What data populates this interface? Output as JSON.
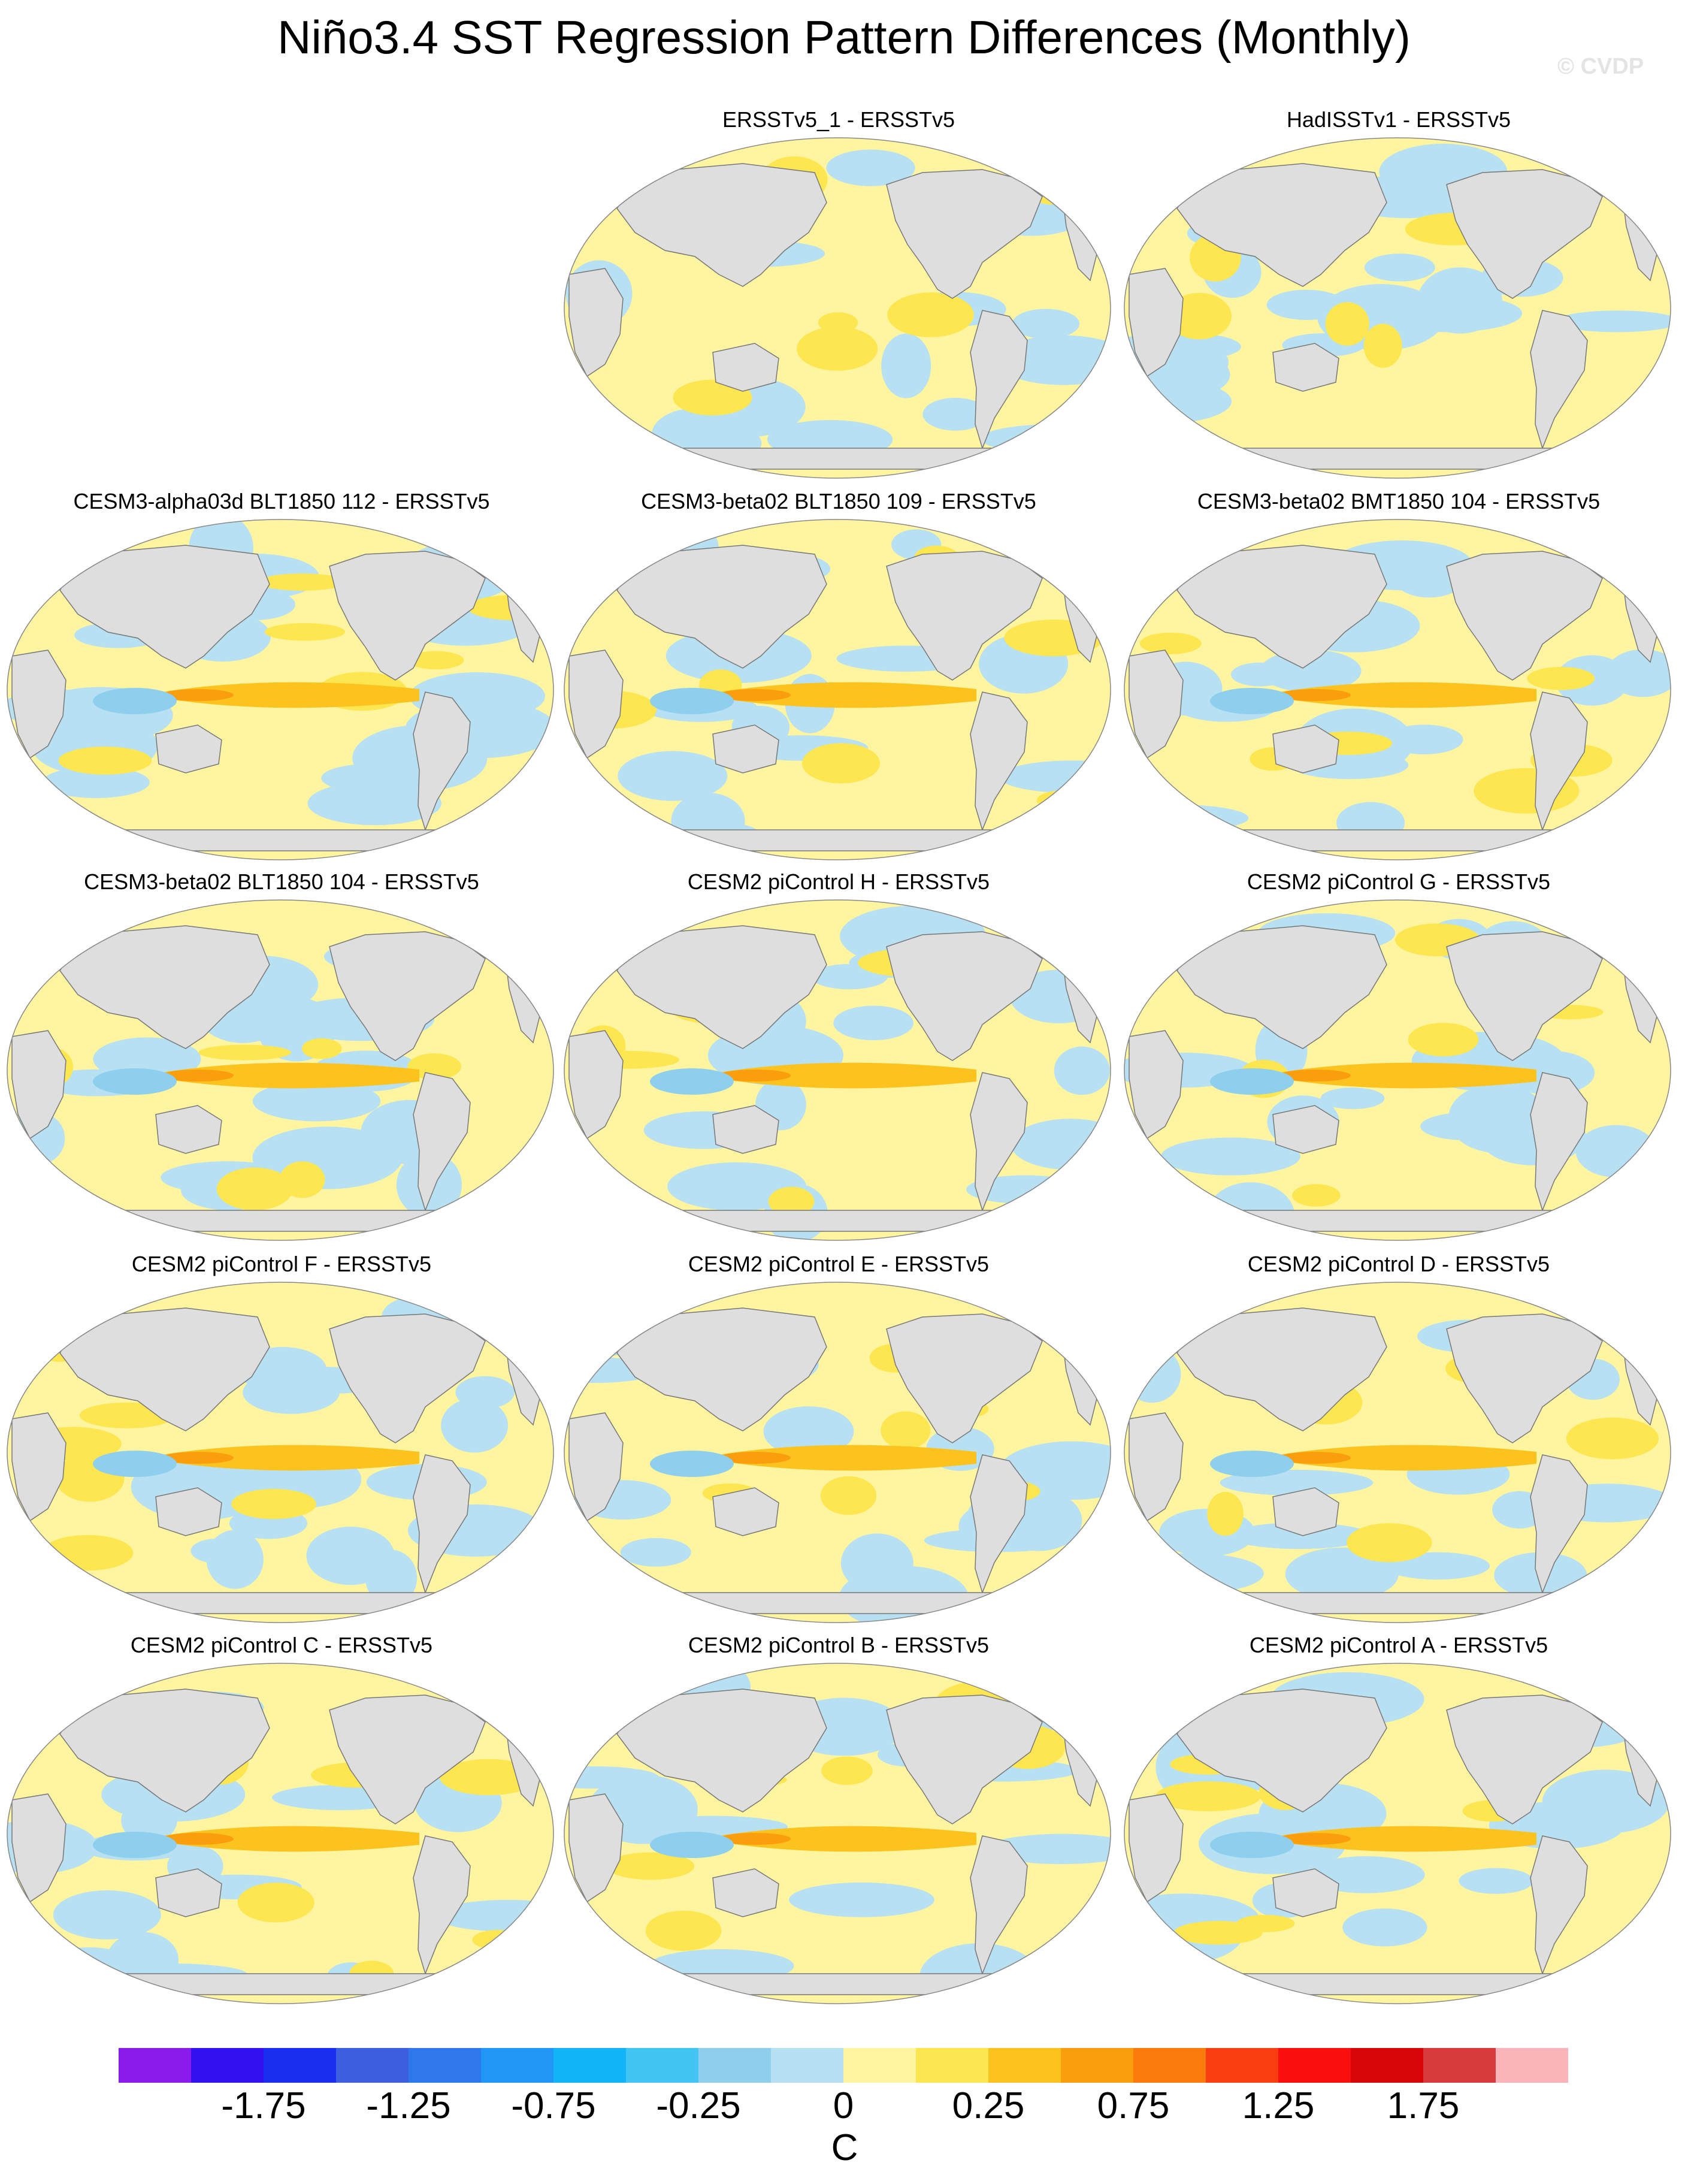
{
  "title": "Niño3.4 SST Regression Pattern Differences (Monthly)",
  "watermark": "© CVDP",
  "panels": [
    {
      "title": "ERSSTv5_1 - ERSSTv5"
    },
    {
      "title": "HadISSTv1 - ERSSTv5"
    },
    {
      "title": "CESM3-alpha03d BLT1850 112 - ERSSTv5"
    },
    {
      "title": "CESM3-beta02 BLT1850 109 - ERSSTv5"
    },
    {
      "title": "CESM3-beta02 BMT1850 104 - ERSSTv5"
    },
    {
      "title": "CESM3-beta02 BLT1850 104 - ERSSTv5"
    },
    {
      "title": "CESM2 piControl H - ERSSTv5"
    },
    {
      "title": "CESM2 piControl G - ERSSTv5"
    },
    {
      "title": "CESM2 piControl F - ERSSTv5"
    },
    {
      "title": "CESM2 piControl E - ERSSTv5"
    },
    {
      "title": "CESM2 piControl D - ERSSTv5"
    },
    {
      "title": "CESM2 piControl C - ERSSTv5"
    },
    {
      "title": "CESM2 piControl B - ERSSTv5"
    },
    {
      "title": "CESM2 piControl A - ERSSTv5"
    }
  ],
  "colorbar": {
    "units": "C",
    "colors": [
      "#8a1bea",
      "#3312f2",
      "#1a2ef2",
      "#3c5fe0",
      "#2f78ec",
      "#2296f6",
      "#11b4f5",
      "#42c4f5",
      "#8ecfee",
      "#b7e0f2",
      "#fff5a0",
      "#fde64f",
      "#fcc21d",
      "#fa9e0d",
      "#fa7a0c",
      "#fa3e12",
      "#fa0e0e",
      "#d80707",
      "#d93a3c",
      "#fbb4b9"
    ],
    "labels": [
      "-1.75",
      "-1.25",
      "-0.75",
      "-0.25",
      "0",
      "0.25",
      "0.75",
      "1.25",
      "1.75"
    ]
  },
  "colors": {
    "land": "#dedede",
    "coast": "#777777",
    "neutral_warm": "#fff5a0",
    "neutral_cool": "#b7e0f2"
  }
}
